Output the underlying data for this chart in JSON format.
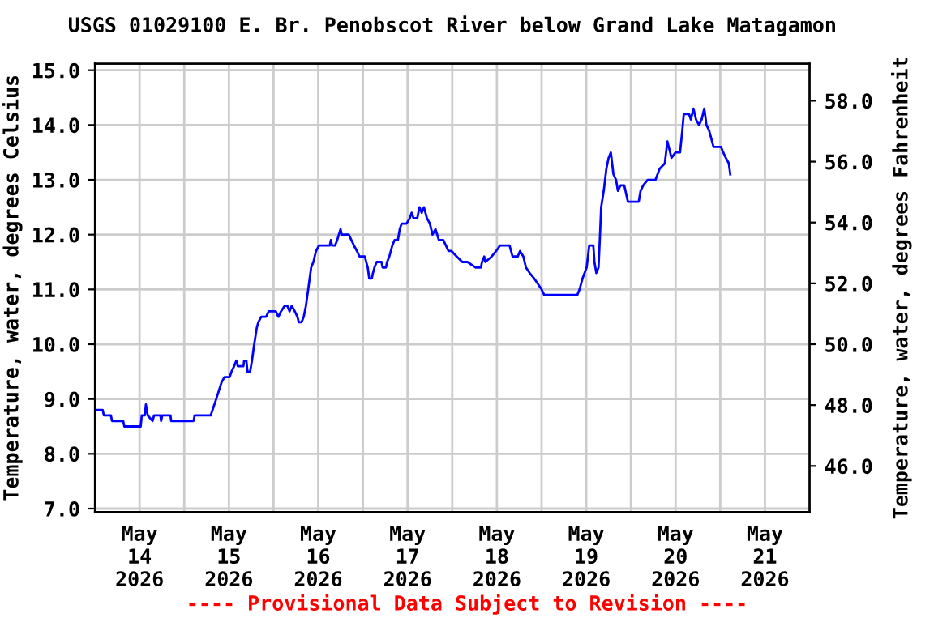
{
  "chart_data": {
    "type": "line",
    "title": "USGS 01029100 E. Br. Penobscot River below Grand Lake Matagamon",
    "ylabel": "Temperature, water, degrees Celsius",
    "y2label": "Temperature, water, degrees Fahrenheit",
    "annotations": [
      "---- Provisional Data Subject to Revision ----"
    ],
    "ylim": [
      6.94,
      15.12
    ],
    "yticks": [
      {
        "value": 7,
        "label": "7.0"
      },
      {
        "value": 8,
        "label": "8.0"
      },
      {
        "value": 9,
        "label": "9.0"
      },
      {
        "value": 10,
        "label": "10.0"
      },
      {
        "value": 11,
        "label": "11.0"
      },
      {
        "value": 12,
        "label": "12.0"
      },
      {
        "value": 13,
        "label": "13.0"
      },
      {
        "value": 14,
        "label": "14.0"
      },
      {
        "value": 15,
        "label": "15.0"
      }
    ],
    "y2lim": [
      44.49,
      59.22
    ],
    "y2ticks": [
      {
        "value": 46,
        "label": "46.0"
      },
      {
        "value": 48,
        "label": "48.0"
      },
      {
        "value": 50,
        "label": "50.0"
      },
      {
        "value": 52,
        "label": "52.0"
      },
      {
        "value": 54,
        "label": "54.0"
      },
      {
        "value": 56,
        "label": "56.0"
      },
      {
        "value": 58,
        "label": "58.0"
      }
    ],
    "xlim": [
      "2026-05-14T00:00",
      "2026-05-22T00:00"
    ],
    "xticks": [
      {
        "value": "2026-05-14T00:00",
        "label": null
      },
      {
        "value": "2026-05-14T12:00",
        "label": "May\n14\n2026"
      },
      {
        "value": "2026-05-15T00:00",
        "label": null
      },
      {
        "value": "2026-05-15T12:00",
        "label": "May\n15\n2026"
      },
      {
        "value": "2026-05-16T00:00",
        "label": null
      },
      {
        "value": "2026-05-16T12:00",
        "label": "May\n16\n2026"
      },
      {
        "value": "2026-05-17T00:00",
        "label": null
      },
      {
        "value": "2026-05-17T12:00",
        "label": "May\n17\n2026"
      },
      {
        "value": "2026-05-18T00:00",
        "label": null
      },
      {
        "value": "2026-05-18T12:00",
        "label": "May\n18\n2026"
      },
      {
        "value": "2026-05-19T00:00",
        "label": null
      },
      {
        "value": "2026-05-19T12:00",
        "label": "May\n19\n2026"
      },
      {
        "value": "2026-05-20T00:00",
        "label": null
      },
      {
        "value": "2026-05-20T12:00",
        "label": "May\n20\n2026"
      },
      {
        "value": "2026-05-21T00:00",
        "label": null
      },
      {
        "value": "2026-05-21T12:00",
        "label": "May\n21\n2026"
      },
      {
        "value": "2026-05-22T00:00",
        "label": null
      }
    ],
    "grid": true,
    "marker": "none",
    "line_style": "solid",
    "series": [
      {
        "color": "#0000ff",
        "x": [
          "2026-05-14T00:00",
          "2026-05-14T02:06",
          "2026-05-14T02:24",
          "2026-05-14T04:18",
          "2026-05-14T04:36",
          "2026-05-14T07:36",
          "2026-05-14T07:54",
          "2026-05-14T12:18",
          "2026-05-14T12:36",
          "2026-05-14T13:24",
          "2026-05-14T13:42",
          "2026-05-14T14:12",
          "2026-05-14T15:30",
          "2026-05-14T15:54",
          "2026-05-14T17:36",
          "2026-05-14T17:48",
          "2026-05-14T18:06",
          "2026-05-14T20:18",
          "2026-05-14T20:30",
          "2026-05-15T02:30",
          "2026-05-15T02:48",
          "2026-05-15T07:06",
          "2026-05-15T07:36",
          "2026-05-15T08:36",
          "2026-05-15T10:00",
          "2026-05-15T10:48",
          "2026-05-15T12:12",
          "2026-05-15T12:42",
          "2026-05-15T13:24",
          "2026-05-15T14:00",
          "2026-05-15T14:24",
          "2026-05-15T15:54",
          "2026-05-15T16:06",
          "2026-05-15T16:42",
          "2026-05-15T17:00",
          "2026-05-15T17:42",
          "2026-05-15T18:12",
          "2026-05-15T18:48",
          "2026-05-15T19:30",
          "2026-05-15T19:54",
          "2026-05-15T20:42",
          "2026-05-15T22:00",
          "2026-05-15T22:42",
          "2026-05-16T00:36",
          "2026-05-16T01:18",
          "2026-05-16T02:00",
          "2026-05-16T03:00",
          "2026-05-16T03:42",
          "2026-05-16T04:18",
          "2026-05-16T04:54",
          "2026-05-16T05:42",
          "2026-05-16T06:24",
          "2026-05-16T06:48",
          "2026-05-16T07:30",
          "2026-05-16T08:06",
          "2026-05-16T08:42",
          "2026-05-16T09:18",
          "2026-05-16T10:06",
          "2026-05-16T10:42",
          "2026-05-16T11:24",
          "2026-05-16T12:12",
          "2026-05-16T15:06",
          "2026-05-16T15:24",
          "2026-05-16T15:42",
          "2026-05-16T16:30",
          "2026-05-16T17:06",
          "2026-05-16T18:00",
          "2026-05-16T18:18",
          "2026-05-16T20:12",
          "2026-05-16T20:54",
          "2026-05-16T21:36",
          "2026-05-16T22:24",
          "2026-05-16T23:06",
          "2026-05-17T00:30",
          "2026-05-17T01:18",
          "2026-05-17T01:42",
          "2026-05-17T02:24",
          "2026-05-17T02:42",
          "2026-05-17T03:06",
          "2026-05-17T03:42",
          "2026-05-17T05:00",
          "2026-05-17T05:18",
          "2026-05-17T06:12",
          "2026-05-17T06:30",
          "2026-05-17T07:06",
          "2026-05-17T07:54",
          "2026-05-17T08:30",
          "2026-05-17T09:24",
          "2026-05-17T09:54",
          "2026-05-17T10:24",
          "2026-05-17T11:42",
          "2026-05-17T12:36",
          "2026-05-17T13:06",
          "2026-05-17T13:36",
          "2026-05-17T14:36",
          "2026-05-17T15:12",
          "2026-05-17T15:48",
          "2026-05-17T16:24",
          "2026-05-17T17:12",
          "2026-05-17T18:00",
          "2026-05-17T18:42",
          "2026-05-17T19:30",
          "2026-05-17T20:24",
          "2026-05-17T21:36",
          "2026-05-17T22:18",
          "2026-05-17T23:00",
          "2026-05-17T23:48",
          "2026-05-18T01:12",
          "2026-05-18T02:42",
          "2026-05-18T04:06",
          "2026-05-18T06:18",
          "2026-05-18T07:42",
          "2026-05-18T08:00",
          "2026-05-18T08:36",
          "2026-05-18T08:54",
          "2026-05-18T10:36",
          "2026-05-18T11:48",
          "2026-05-18T12:48",
          "2026-05-18T15:24",
          "2026-05-18T16:12",
          "2026-05-18T17:36",
          "2026-05-18T18:12",
          "2026-05-18T19:06",
          "2026-05-18T19:48",
          "2026-05-18T20:48",
          "2026-05-18T22:00",
          "2026-05-18T23:00",
          "2026-05-19T00:00",
          "2026-05-19T00:42",
          "2026-05-19T09:36",
          "2026-05-19T10:12",
          "2026-05-19T11:00",
          "2026-05-19T12:06",
          "2026-05-19T12:48",
          "2026-05-19T13:54",
          "2026-05-19T14:12",
          "2026-05-19T14:42",
          "2026-05-19T15:18",
          "2026-05-19T15:42",
          "2026-05-19T16:00",
          "2026-05-19T16:42",
          "2026-05-19T17:24",
          "2026-05-19T18:00",
          "2026-05-19T18:36",
          "2026-05-19T19:18",
          "2026-05-19T20:00",
          "2026-05-19T20:30",
          "2026-05-19T21:12",
          "2026-05-19T22:12",
          "2026-05-19T23:12",
          "2026-05-20T00:24",
          "2026-05-20T02:06",
          "2026-05-20T02:36",
          "2026-05-20T03:18",
          "2026-05-20T04:30",
          "2026-05-20T06:36",
          "2026-05-20T07:42",
          "2026-05-20T09:06",
          "2026-05-20T09:48",
          "2026-05-20T10:54",
          "2026-05-20T12:00",
          "2026-05-20T13:12",
          "2026-05-20T13:48",
          "2026-05-20T14:12",
          "2026-05-20T14:54",
          "2026-05-20T15:36",
          "2026-05-20T16:06",
          "2026-05-20T16:48",
          "2026-05-20T17:30",
          "2026-05-20T18:18",
          "2026-05-20T19:00",
          "2026-05-20T19:42",
          "2026-05-20T20:18",
          "2026-05-20T21:00",
          "2026-05-20T22:12",
          "2026-05-21T00:12",
          "2026-05-21T00:48",
          "2026-05-21T01:30",
          "2026-05-21T02:18",
          "2026-05-21T02:42"
        ],
        "values": [
          8.8,
          8.8,
          8.7,
          8.7,
          8.6,
          8.6,
          8.5,
          8.5,
          8.7,
          8.7,
          8.9,
          8.7,
          8.6,
          8.7,
          8.7,
          8.6,
          8.7,
          8.7,
          8.6,
          8.6,
          8.7,
          8.7,
          8.8,
          9.0,
          9.3,
          9.4,
          9.4,
          9.5,
          9.6,
          9.7,
          9.6,
          9.6,
          9.7,
          9.7,
          9.5,
          9.5,
          9.7,
          10.0,
          10.3,
          10.4,
          10.5,
          10.5,
          10.6,
          10.6,
          10.5,
          10.6,
          10.7,
          10.7,
          10.6,
          10.7,
          10.6,
          10.5,
          10.4,
          10.4,
          10.5,
          10.7,
          11.0,
          11.4,
          11.5,
          11.7,
          11.8,
          11.8,
          11.9,
          11.8,
          11.8,
          11.9,
          12.1,
          12.0,
          12.0,
          11.9,
          11.8,
          11.7,
          11.6,
          11.6,
          11.4,
          11.2,
          11.2,
          11.3,
          11.4,
          11.5,
          11.5,
          11.4,
          11.4,
          11.5,
          11.6,
          11.8,
          11.9,
          11.9,
          12.1,
          12.2,
          12.2,
          12.3,
          12.4,
          12.3,
          12.3,
          12.5,
          12.4,
          12.5,
          12.3,
          12.2,
          12.0,
          12.1,
          11.9,
          11.9,
          11.8,
          11.7,
          11.7,
          11.6,
          11.5,
          11.5,
          11.4,
          11.4,
          11.5,
          11.6,
          11.5,
          11.6,
          11.7,
          11.8,
          11.8,
          11.6,
          11.6,
          11.7,
          11.6,
          11.4,
          11.3,
          11.2,
          11.1,
          11.0,
          10.9,
          10.9,
          11.0,
          11.2,
          11.4,
          11.8,
          11.8,
          11.5,
          11.3,
          11.4,
          12.0,
          12.5,
          12.8,
          13.2,
          13.4,
          13.5,
          13.1,
          13.0,
          12.8,
          12.9,
          12.9,
          12.6,
          12.6,
          12.6,
          12.8,
          12.9,
          13.0,
          13.0,
          13.2,
          13.3,
          13.7,
          13.4,
          13.5,
          13.5,
          13.9,
          14.2,
          14.2,
          14.2,
          14.1,
          14.3,
          14.1,
          14.0,
          14.1,
          14.3,
          14.0,
          13.9,
          13.6,
          13.6,
          13.5,
          13.4,
          13.3,
          13.1
        ]
      }
    ]
  }
}
